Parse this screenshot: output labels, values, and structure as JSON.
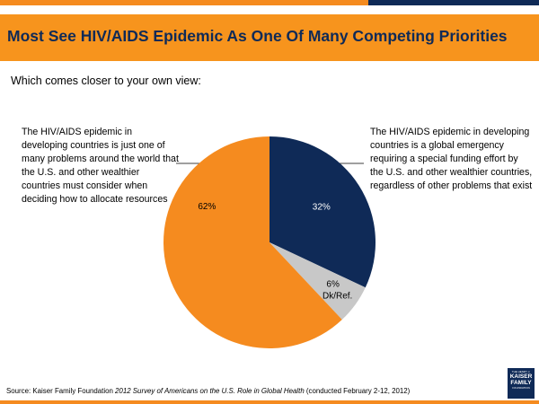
{
  "header": {
    "title": "Most See HIV/AIDS Epidemic As One Of Many Competing Priorities"
  },
  "question": "Which comes closer to your own view:",
  "labels": {
    "left": "The HIV/AIDS epidemic in developing countries is just one of many problems around the world that the U.S. and other wealthier countries must consider when deciding how to allocate resources",
    "right": "The HIV/AIDS epidemic in developing countries is a global emergency requiring a special funding effort by the U.S. and other wealthier countries, regardless of other problems that exist"
  },
  "chart_data": {
    "type": "pie",
    "title": "",
    "slices": [
      {
        "label": "",
        "value": 32,
        "display": "32%",
        "color": "#0f2a57",
        "text_color": "#ffffff"
      },
      {
        "label": "Dk/Ref.",
        "value": 6,
        "display": "6%",
        "color": "#c8c8c8",
        "text_color": "#000000"
      },
      {
        "label": "",
        "value": 62,
        "display": "62%",
        "color": "#f58b1f",
        "text_color": "#000000"
      }
    ],
    "start": "12 o'clock",
    "direction": "clockwise",
    "legend": "none"
  },
  "footer": {
    "source_prefix": "Source: Kaiser Family Foundation ",
    "source_italic": "2012 Survey of Americans on the U.S. Role in Global Health",
    "source_suffix": " (conducted February 2-12, 2012)",
    "logo_top": "THE HENRY J.",
    "logo_lines": [
      "KAISER",
      "FAMILY"
    ],
    "logo_bottom": "FOUNDATION"
  },
  "colors": {
    "accent_orange": "#f7941d",
    "navy": "#0f2a57",
    "gray": "#c8c8c8"
  }
}
